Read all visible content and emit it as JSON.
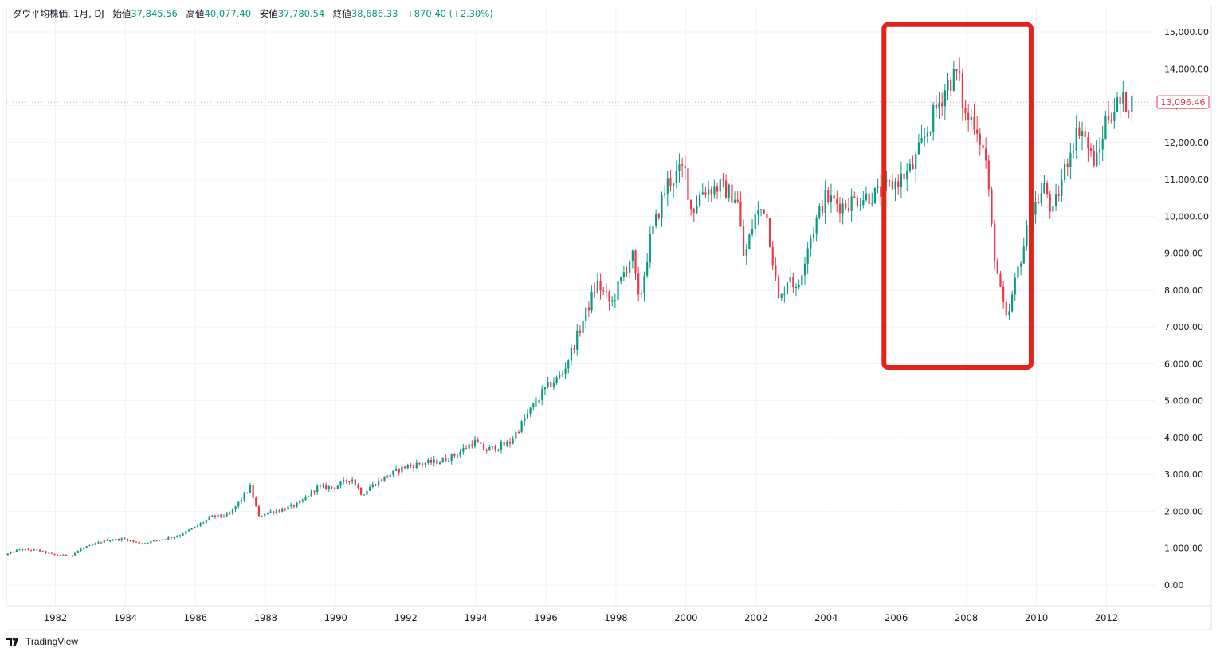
{
  "legend": {
    "symbol": "ダウ平均株価, 1月, DJ",
    "open_label": "始値",
    "open": "37,845.56",
    "high_label": "高値",
    "high": "40,077.40",
    "low_label": "安値",
    "low": "37,780.54",
    "close_label": "終値",
    "close": "38,686.33",
    "change": "+870.40 (+2.30%)"
  },
  "brand": {
    "name": "TradingView"
  },
  "price_badge": "13,096.46",
  "colors": {
    "up": "#089981",
    "down": "#f23645",
    "highlight": "#e0241b",
    "grid": "#f0f3fa",
    "text": "#131722"
  },
  "chart_data": {
    "type": "candlestick",
    "title": "",
    "xlabel": "",
    "ylabel": "",
    "ylim": [
      -400,
      15500
    ],
    "xlim": [
      1980.6,
      2013.4
    ],
    "y_ticks": [
      "0.00",
      "1,000.00",
      "2,000.00",
      "3,000.00",
      "4,000.00",
      "5,000.00",
      "6,000.00",
      "7,000.00",
      "8,000.00",
      "9,000.00",
      "10,000.00",
      "11,000.00",
      "12,000.00",
      "13,000.00",
      "14,000.00",
      "15,000.00"
    ],
    "x_ticks": [
      "1982",
      "1984",
      "1986",
      "1988",
      "1990",
      "1992",
      "1994",
      "1996",
      "1998",
      "2000",
      "2002",
      "2004",
      "2006",
      "2008",
      "2010",
      "2012"
    ],
    "grid": true,
    "last_price": 13096.46,
    "series": [
      {
        "values": [
          [
            1980.6,
            820
          ],
          [
            1981.0,
            960
          ],
          [
            1981.5,
            950
          ],
          [
            1982.0,
            820
          ],
          [
            1982.5,
            800
          ],
          [
            1982.8,
            1000
          ],
          [
            1983.0,
            1050
          ],
          [
            1983.5,
            1220
          ],
          [
            1984.0,
            1250
          ],
          [
            1984.5,
            1120
          ],
          [
            1985.0,
            1230
          ],
          [
            1985.5,
            1320
          ],
          [
            1986.0,
            1550
          ],
          [
            1986.5,
            1850
          ],
          [
            1987.0,
            1900
          ],
          [
            1987.6,
            2650
          ],
          [
            1987.85,
            1850
          ],
          [
            1988.0,
            1950
          ],
          [
            1988.5,
            2050
          ],
          [
            1989.0,
            2200
          ],
          [
            1989.5,
            2650
          ],
          [
            1990.0,
            2650
          ],
          [
            1990.5,
            2900
          ],
          [
            1990.8,
            2450
          ],
          [
            1991.0,
            2650
          ],
          [
            1991.5,
            2950
          ],
          [
            1992.0,
            3200
          ],
          [
            1992.5,
            3300
          ],
          [
            1993.0,
            3350
          ],
          [
            1993.5,
            3550
          ],
          [
            1994.0,
            3900
          ],
          [
            1994.3,
            3650
          ],
          [
            1995.0,
            3850
          ],
          [
            1995.5,
            4600
          ],
          [
            1996.0,
            5300
          ],
          [
            1996.5,
            5700
          ],
          [
            1997.0,
            6900
          ],
          [
            1997.5,
            8200
          ],
          [
            1997.9,
            7600
          ],
          [
            1998.5,
            9000
          ],
          [
            1998.7,
            7600
          ],
          [
            1999.0,
            9300
          ],
          [
            1999.5,
            10900
          ],
          [
            2000.0,
            11300
          ],
          [
            2000.2,
            10100
          ],
          [
            2000.5,
            10700
          ],
          [
            2001.0,
            10800
          ],
          [
            2001.5,
            10500
          ],
          [
            2001.7,
            8800
          ],
          [
            2002.0,
            10000
          ],
          [
            2002.3,
            10300
          ],
          [
            2002.7,
            7600
          ],
          [
            2003.0,
            8500
          ],
          [
            2003.2,
            7900
          ],
          [
            2003.5,
            9200
          ],
          [
            2004.0,
            10500
          ],
          [
            2004.5,
            10300
          ],
          [
            2005.0,
            10500
          ],
          [
            2005.5,
            10600
          ],
          [
            2006.0,
            10900
          ],
          [
            2006.5,
            11300
          ],
          [
            2007.0,
            12500
          ],
          [
            2007.5,
            13600
          ],
          [
            2007.8,
            13900
          ],
          [
            2008.0,
            12700
          ],
          [
            2008.3,
            12600
          ],
          [
            2008.6,
            11500
          ],
          [
            2008.8,
            9300
          ],
          [
            2009.0,
            8000
          ],
          [
            2009.2,
            7100
          ],
          [
            2009.5,
            8500
          ],
          [
            2009.8,
            9700
          ],
          [
            2010.0,
            10300
          ],
          [
            2010.3,
            10800
          ],
          [
            2010.5,
            10000
          ],
          [
            2011.0,
            11800
          ],
          [
            2011.3,
            12500
          ],
          [
            2011.6,
            11600
          ],
          [
            2011.8,
            11500
          ],
          [
            2012.0,
            12600
          ],
          [
            2012.3,
            13000
          ],
          [
            2012.6,
            13100
          ]
        ]
      }
    ],
    "annotations": [
      {
        "type": "rectangle",
        "x_range": [
          2005.65,
          2009.85
        ],
        "y_range": [
          5900,
          15200
        ],
        "color": "#e0241b"
      }
    ]
  }
}
